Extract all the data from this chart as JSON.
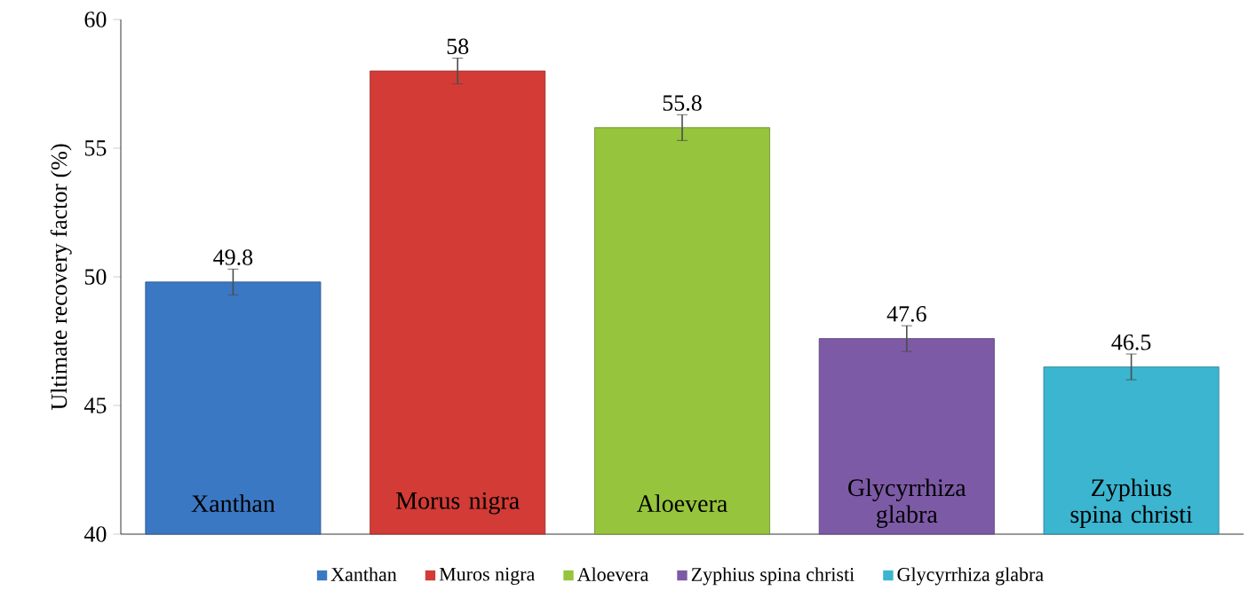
{
  "chart_data": {
    "type": "bar",
    "ylabel": "Ultimate recovery factor (%)",
    "categories": [
      "Xanthan",
      "Morus nigra",
      "Aloevera",
      "Glycyrrhiza glabra",
      "Zyphius spina christi"
    ],
    "series": [
      {
        "name": "Xanthan",
        "color": "#3b78c4",
        "values": [
          49.8,
          null,
          null,
          null,
          null
        ],
        "errors": [
          0.5,
          null,
          null,
          null,
          null
        ]
      },
      {
        "name": "Muros nigra",
        "color": "#d33b36",
        "values": [
          null,
          58,
          null,
          null,
          null
        ],
        "errors": [
          null,
          0.5,
          null,
          null,
          null
        ]
      },
      {
        "name": "Aloevera",
        "color": "#96c43c",
        "values": [
          null,
          null,
          55.8,
          null,
          null
        ],
        "errors": [
          null,
          null,
          0.5,
          null,
          null
        ]
      },
      {
        "name": "Zyphius spina christi",
        "color": "#7d5aa6",
        "values": [
          null,
          null,
          null,
          47.6,
          null
        ],
        "errors": [
          null,
          null,
          null,
          0.5,
          null
        ]
      },
      {
        "name": "Glycyrrhiza glabra",
        "color": "#3bb5d0",
        "values": [
          null,
          null,
          null,
          null,
          46.5
        ],
        "errors": [
          null,
          null,
          null,
          null,
          0.5
        ]
      }
    ],
    "ylim": [
      40,
      60
    ],
    "yticks": [
      40,
      45,
      50,
      55,
      60
    ],
    "grid": false,
    "data_labels": true,
    "legend": "bottom"
  }
}
